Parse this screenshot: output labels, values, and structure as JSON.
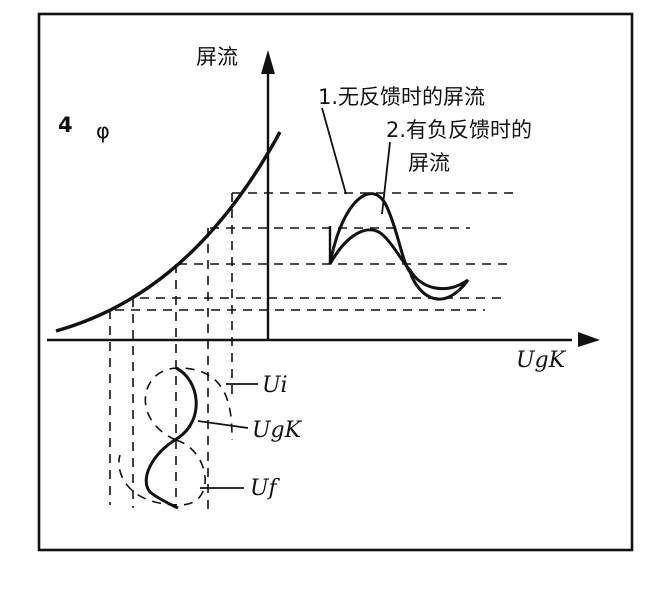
{
  "figure": {
    "y_axis_label": "屏流",
    "x_axis_label": "UgK",
    "badge": "4",
    "badge_sub": "φ",
    "curve_labels": {
      "no_feedback": "1.无反馈时的屏流",
      "neg_feedback_line1": "2.有负反馈时的",
      "neg_feedback_line2": "屏流"
    },
    "signal_labels": {
      "ui": "Ui",
      "ugk": "UgK",
      "uf": "Uf"
    }
  },
  "colors": {
    "ink": "#111111",
    "background": "#ffffff"
  }
}
